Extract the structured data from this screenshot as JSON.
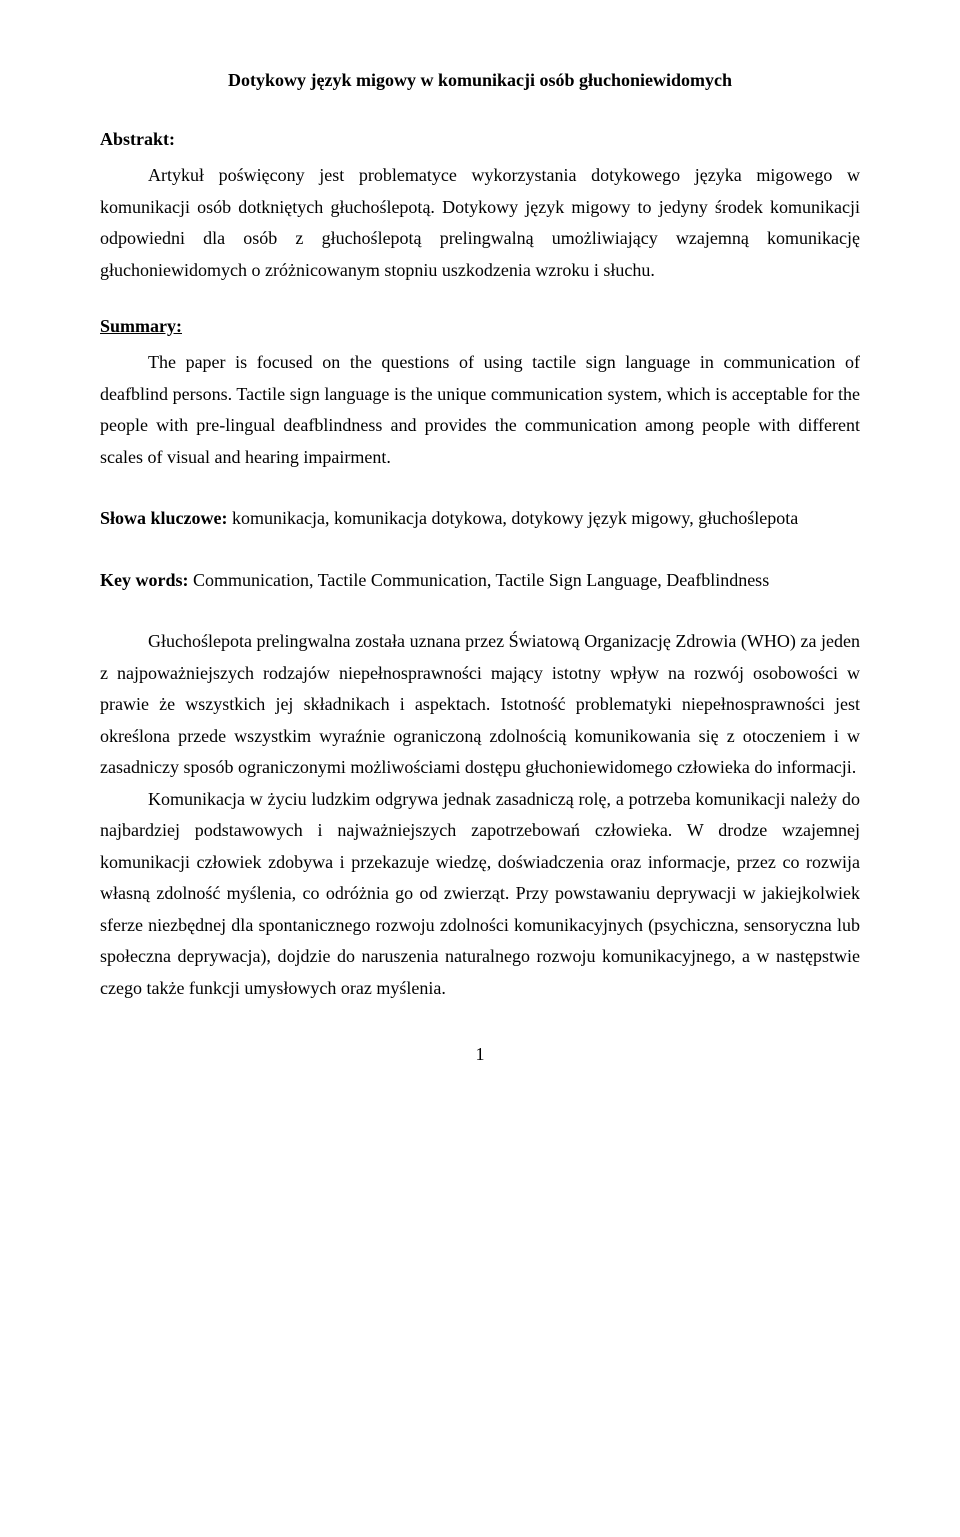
{
  "title": "Dotykowy język migowy w komunikacji osób głuchoniewidomych",
  "abstraktLabel": "Abstrakt:",
  "abstraktText": "Artykuł poświęcony jest problematyce wykorzystania dotykowego języka migowego w komunikacji osób dotkniętych głuchoślepotą. Dotykowy język migowy to jedyny środek komunikacji odpowiedni dla osób z głuchoślepotą prelingwalną umożliwiający wzajemną komunikację głuchoniewidomych o zróżnicowanym stopniu uszkodzenia wzroku i słuchu.",
  "summaryLabel": "Summary:",
  "summaryText": "The paper is focused on the questions of using tactile sign language in communication of deafblind persons. Tactile sign language is the unique communication system, which is acceptable for the people with pre-lingual deafblindness and provides the communication among people with different scales of visual and hearing impairment.",
  "slowaKluczoweLabel": "Słowa kluczowe:",
  "slowaKluczoweText": " komunikacja, komunikacja dotykowa, dotykowy język migowy, głuchoślepota",
  "keyWordsLabel": "Key words:",
  "keyWordsText": " Communication, Tactile Communication, Tactile Sign Language, Deafblindness",
  "bodyPara1": "Głuchoślepota prelingwalna została uznana przez Światową Organizację Zdrowia (WHO) za jeden z najpoważniejszych rodzajów niepełnosprawności mający istotny wpływ na rozwój osobowości w prawie że wszystkich jej składnikach i aspektach. Istotność problematyki niepełnosprawności jest określona przede wszystkim wyraźnie ograniczoną zdolnością komunikowania się z otoczeniem i w zasadniczy sposób ograniczonymi możliwościami dostępu głuchoniewidomego człowieka do informacji.",
  "bodyPara2": "Komunikacja w życiu ludzkim odgrywa jednak zasadniczą rolę, a potrzeba komunikacji należy do najbardziej podstawowych i najważniejszych zapotrzebowań człowieka. W drodze wzajemnej komunikacji człowiek zdobywa i przekazuje wiedzę, doświadczenia oraz informacje, przez co rozwija własną zdolność myślenia, co odróżnia go od zwierząt. Przy powstawaniu deprywacji w jakiejkolwiek sferze niezbędnej dla spontanicznego rozwoju zdolności komunikacyjnych (psychiczna, sensoryczna lub społeczna deprywacja), dojdzie do naruszenia naturalnego rozwoju komunikacyjnego, a w następstwie czego także funkcji umysłowych oraz myślenia.",
  "pageNumber": "1"
}
